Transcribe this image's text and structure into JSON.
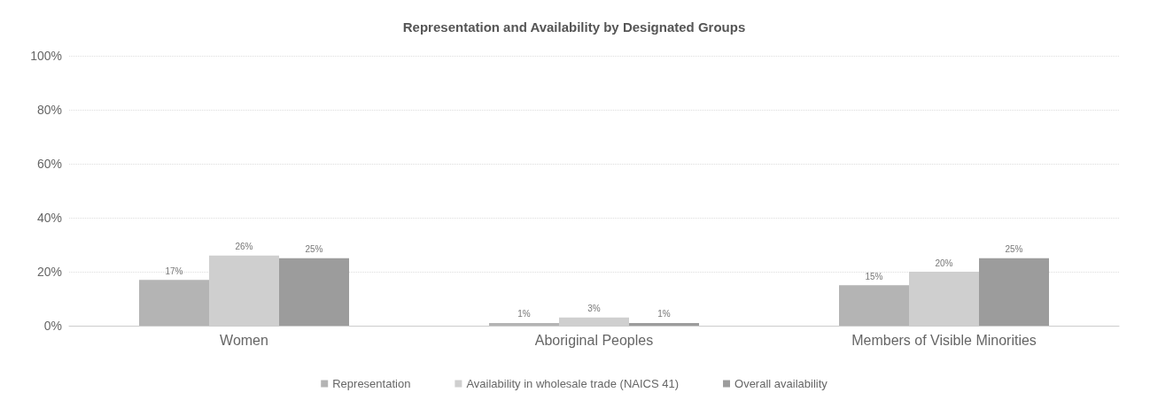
{
  "chart_data": {
    "type": "bar",
    "title": "Representation and Availability by Designated Groups",
    "categories": [
      "Women",
      "Aboriginal Peoples",
      "Members of Visible Minorities"
    ],
    "series": [
      {
        "name": "Representation",
        "color": "#b4b4b4",
        "values": [
          17,
          1,
          15
        ],
        "value_labels": [
          "17%",
          "1%",
          "15%"
        ]
      },
      {
        "name": "Availability in wholesale trade (NAICS 41)",
        "color": "#cfcfcf",
        "values": [
          26,
          3,
          20
        ],
        "value_labels": [
          "26%",
          "3%",
          "20%"
        ]
      },
      {
        "name": "Overall availability",
        "color": "#9c9c9c",
        "values": [
          25,
          1,
          25
        ],
        "value_labels": [
          "25%",
          "1%",
          "25%"
        ]
      }
    ],
    "ylim": [
      0,
      100
    ],
    "yticks": [
      {
        "value": 0,
        "label": "0%"
      },
      {
        "value": 20,
        "label": "20%"
      },
      {
        "value": 40,
        "label": "40%"
      },
      {
        "value": 60,
        "label": "60%"
      },
      {
        "value": 80,
        "label": "80%"
      },
      {
        "value": 100,
        "label": "100%"
      }
    ],
    "grid": "y",
    "legend": "bottom"
  }
}
